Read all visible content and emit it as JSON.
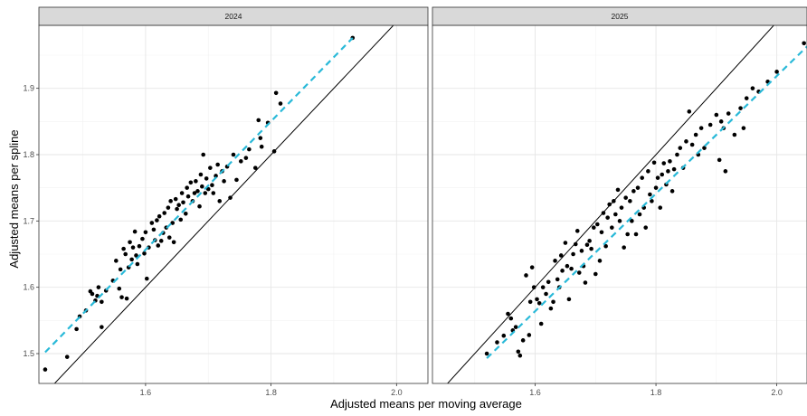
{
  "chart_data": {
    "type": "scatter",
    "xlabel": "Adjusted means per moving average",
    "ylabel": "Adjusted means per spline",
    "xlim": [
      1.43,
      2.05
    ],
    "ylim": [
      1.455,
      1.995
    ],
    "x_ticks": [
      1.6,
      1.8,
      2.0
    ],
    "y_ticks": [
      1.5,
      1.6,
      1.7,
      1.8,
      1.9
    ],
    "x_tick_labels": [
      "1.6",
      "1.8",
      "2.0"
    ],
    "y_tick_labels": [
      "1.5",
      "1.6",
      "1.7",
      "1.8",
      "1.9"
    ],
    "grid": true,
    "theme": "bw",
    "point_color": "#000000",
    "identity_line_color": "#000000",
    "fit_line_color": "#29B9D8",
    "panels": [
      {
        "label": "2024",
        "fit_line": {
          "x": [
            1.44,
            1.93
          ],
          "y": [
            1.502,
            1.976
          ]
        },
        "identity_line": {
          "x": [
            1.43,
            2.05
          ],
          "y": [
            1.43,
            2.05
          ]
        },
        "points": [
          [
            1.44,
            1.476
          ],
          [
            1.475,
            1.495
          ],
          [
            1.49,
            1.537
          ],
          [
            1.495,
            1.556
          ],
          [
            1.505,
            1.565
          ],
          [
            1.512,
            1.594
          ],
          [
            1.515,
            1.59
          ],
          [
            1.52,
            1.58
          ],
          [
            1.523,
            1.587
          ],
          [
            1.525,
            1.6
          ],
          [
            1.53,
            1.578
          ],
          [
            1.53,
            1.54
          ],
          [
            1.537,
            1.595
          ],
          [
            1.548,
            1.61
          ],
          [
            1.553,
            1.64
          ],
          [
            1.558,
            1.598
          ],
          [
            1.56,
            1.627
          ],
          [
            1.562,
            1.585
          ],
          [
            1.565,
            1.658
          ],
          [
            1.568,
            1.65
          ],
          [
            1.57,
            1.583
          ],
          [
            1.573,
            1.63
          ],
          [
            1.575,
            1.668
          ],
          [
            1.578,
            1.642
          ],
          [
            1.58,
            1.66
          ],
          [
            1.583,
            1.684
          ],
          [
            1.585,
            1.648
          ],
          [
            1.587,
            1.635
          ],
          [
            1.59,
            1.662
          ],
          [
            1.595,
            1.673
          ],
          [
            1.598,
            1.651
          ],
          [
            1.6,
            1.683
          ],
          [
            1.602,
            1.613
          ],
          [
            1.605,
            1.66
          ],
          [
            1.61,
            1.697
          ],
          [
            1.613,
            1.687
          ],
          [
            1.615,
            1.671
          ],
          [
            1.618,
            1.701
          ],
          [
            1.62,
            1.663
          ],
          [
            1.622,
            1.707
          ],
          [
            1.625,
            1.67
          ],
          [
            1.628,
            1.682
          ],
          [
            1.63,
            1.712
          ],
          [
            1.633,
            1.69
          ],
          [
            1.636,
            1.72
          ],
          [
            1.638,
            1.675
          ],
          [
            1.64,
            1.73
          ],
          [
            1.643,
            1.697
          ],
          [
            1.645,
            1.668
          ],
          [
            1.648,
            1.733
          ],
          [
            1.65,
            1.718
          ],
          [
            1.653,
            1.724
          ],
          [
            1.656,
            1.702
          ],
          [
            1.658,
            1.742
          ],
          [
            1.66,
            1.728
          ],
          [
            1.664,
            1.711
          ],
          [
            1.666,
            1.75
          ],
          [
            1.668,
            1.737
          ],
          [
            1.672,
            1.758
          ],
          [
            1.675,
            1.73
          ],
          [
            1.678,
            1.742
          ],
          [
            1.68,
            1.76
          ],
          [
            1.683,
            1.745
          ],
          [
            1.686,
            1.722
          ],
          [
            1.688,
            1.77
          ],
          [
            1.69,
            1.752
          ],
          [
            1.692,
            1.8
          ],
          [
            1.695,
            1.742
          ],
          [
            1.697,
            1.764
          ],
          [
            1.7,
            1.748
          ],
          [
            1.703,
            1.78
          ],
          [
            1.706,
            1.754
          ],
          [
            1.708,
            1.742
          ],
          [
            1.712,
            1.768
          ],
          [
            1.715,
            1.785
          ],
          [
            1.718,
            1.73
          ],
          [
            1.722,
            1.775
          ],
          [
            1.725,
            1.76
          ],
          [
            1.73,
            1.782
          ],
          [
            1.735,
            1.735
          ],
          [
            1.74,
            1.8
          ],
          [
            1.745,
            1.762
          ],
          [
            1.752,
            1.79
          ],
          [
            1.76,
            1.795
          ],
          [
            1.765,
            1.808
          ],
          [
            1.775,
            1.78
          ],
          [
            1.78,
            1.852
          ],
          [
            1.783,
            1.825
          ],
          [
            1.785,
            1.812
          ],
          [
            1.795,
            1.848
          ],
          [
            1.805,
            1.805
          ],
          [
            1.808,
            1.893
          ],
          [
            1.815,
            1.877
          ],
          [
            1.93,
            1.976
          ]
        ]
      },
      {
        "label": "2025",
        "fit_line": {
          "x": [
            1.52,
            2.05
          ],
          "y": [
            1.493,
            1.963
          ]
        },
        "identity_line": {
          "x": [
            1.43,
            2.05
          ],
          "y": [
            1.43,
            2.05
          ]
        },
        "points": [
          [
            1.52,
            1.5
          ],
          [
            1.537,
            1.517
          ],
          [
            1.548,
            1.527
          ],
          [
            1.555,
            1.56
          ],
          [
            1.56,
            1.553
          ],
          [
            1.563,
            1.535
          ],
          [
            1.568,
            1.54
          ],
          [
            1.572,
            1.503
          ],
          [
            1.575,
            1.497
          ],
          [
            1.58,
            1.52
          ],
          [
            1.585,
            1.618
          ],
          [
            1.59,
            1.528
          ],
          [
            1.592,
            1.578
          ],
          [
            1.595,
            1.63
          ],
          [
            1.598,
            1.6
          ],
          [
            1.603,
            1.582
          ],
          [
            1.607,
            1.576
          ],
          [
            1.61,
            1.545
          ],
          [
            1.613,
            1.6
          ],
          [
            1.618,
            1.59
          ],
          [
            1.622,
            1.608
          ],
          [
            1.626,
            1.568
          ],
          [
            1.63,
            1.578
          ],
          [
            1.633,
            1.64
          ],
          [
            1.637,
            1.612
          ],
          [
            1.64,
            1.6
          ],
          [
            1.643,
            1.648
          ],
          [
            1.645,
            1.625
          ],
          [
            1.65,
            1.667
          ],
          [
            1.653,
            1.632
          ],
          [
            1.656,
            1.582
          ],
          [
            1.66,
            1.628
          ],
          [
            1.663,
            1.65
          ],
          [
            1.667,
            1.665
          ],
          [
            1.67,
            1.685
          ],
          [
            1.673,
            1.622
          ],
          [
            1.677,
            1.655
          ],
          [
            1.68,
            1.632
          ],
          [
            1.683,
            1.607
          ],
          [
            1.686,
            1.664
          ],
          [
            1.69,
            1.67
          ],
          [
            1.693,
            1.658
          ],
          [
            1.697,
            1.69
          ],
          [
            1.7,
            1.62
          ],
          [
            1.703,
            1.695
          ],
          [
            1.707,
            1.64
          ],
          [
            1.71,
            1.683
          ],
          [
            1.713,
            1.712
          ],
          [
            1.717,
            1.662
          ],
          [
            1.72,
            1.705
          ],
          [
            1.723,
            1.725
          ],
          [
            1.727,
            1.69
          ],
          [
            1.73,
            1.73
          ],
          [
            1.733,
            1.71
          ],
          [
            1.737,
            1.747
          ],
          [
            1.74,
            1.7
          ],
          [
            1.743,
            1.72
          ],
          [
            1.747,
            1.66
          ],
          [
            1.75,
            1.735
          ],
          [
            1.753,
            1.68
          ],
          [
            1.757,
            1.73
          ],
          [
            1.76,
            1.7
          ],
          [
            1.763,
            1.745
          ],
          [
            1.767,
            1.68
          ],
          [
            1.77,
            1.75
          ],
          [
            1.773,
            1.71
          ],
          [
            1.777,
            1.765
          ],
          [
            1.78,
            1.72
          ],
          [
            1.783,
            1.69
          ],
          [
            1.787,
            1.775
          ],
          [
            1.79,
            1.74
          ],
          [
            1.793,
            1.73
          ],
          [
            1.797,
            1.788
          ],
          [
            1.8,
            1.75
          ],
          [
            1.803,
            1.765
          ],
          [
            1.807,
            1.72
          ],
          [
            1.81,
            1.77
          ],
          [
            1.813,
            1.787
          ],
          [
            1.817,
            1.755
          ],
          [
            1.82,
            1.775
          ],
          [
            1.823,
            1.79
          ],
          [
            1.827,
            1.745
          ],
          [
            1.83,
            1.778
          ],
          [
            1.835,
            1.8
          ],
          [
            1.84,
            1.81
          ],
          [
            1.845,
            1.78
          ],
          [
            1.85,
            1.82
          ],
          [
            1.855,
            1.865
          ],
          [
            1.86,
            1.815
          ],
          [
            1.866,
            1.83
          ],
          [
            1.87,
            1.8
          ],
          [
            1.875,
            1.84
          ],
          [
            1.88,
            1.81
          ],
          [
            1.89,
            1.845
          ],
          [
            1.9,
            1.86
          ],
          [
            1.905,
            1.792
          ],
          [
            1.908,
            1.85
          ],
          [
            1.912,
            1.84
          ],
          [
            1.915,
            1.775
          ],
          [
            1.92,
            1.862
          ],
          [
            1.93,
            1.83
          ],
          [
            1.94,
            1.87
          ],
          [
            1.945,
            1.84
          ],
          [
            1.95,
            1.885
          ],
          [
            1.96,
            1.9
          ],
          [
            1.97,
            1.895
          ],
          [
            1.985,
            1.91
          ],
          [
            2.0,
            1.925
          ],
          [
            2.045,
            1.968
          ]
        ]
      }
    ]
  }
}
